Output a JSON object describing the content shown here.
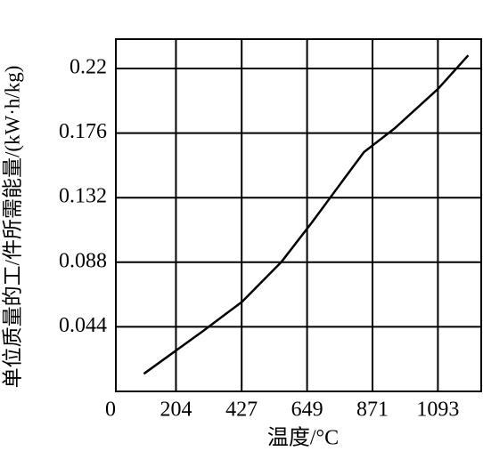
{
  "chart_data": {
    "type": "line",
    "x_label": "温度/°C",
    "y_label": "单位质量的工/件所需能量/(kW·h/kg)",
    "x": [
      95,
      295,
      428,
      561,
      665,
      768,
      842,
      945,
      1093,
      1196
    ],
    "series": [
      {
        "name": "line",
        "color": "#000000",
        "values": [
          0.012,
          0.041,
          0.061,
          0.088,
          0.115,
          0.143,
          0.163,
          0.179,
          0.206,
          0.229
        ]
      }
    ],
    "xlim": [
      0,
      1240
    ],
    "ylim": [
      0,
      0.24
    ],
    "xticks": [
      0,
      204,
      427,
      649,
      871,
      1093
    ],
    "yticks": [
      0.044,
      0.088,
      0.132,
      0.176,
      0.22
    ],
    "grid": true
  }
}
